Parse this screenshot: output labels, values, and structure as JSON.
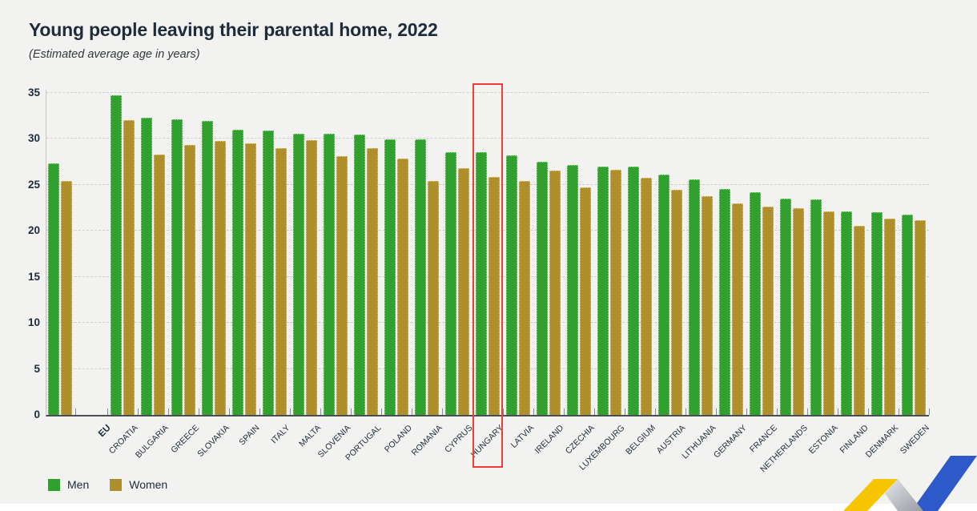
{
  "title": "Young people leaving their parental home, 2022",
  "subtitle": "(Estimated average age in years)",
  "legend": {
    "men": "Men",
    "women": "Women"
  },
  "colors": {
    "men": "#31a02f",
    "women": "#af8e2c",
    "highlight_box": "#ee3d36",
    "background": "#f2f2f0",
    "ink": "#1d2b3a",
    "logo_yellow": "#f6c500",
    "logo_blue": "#2d5ac8",
    "logo_gray": "#b9bcc2"
  },
  "chart_data": {
    "type": "bar",
    "title": "Young people leaving their parental home, 2022",
    "subtitle": "(Estimated average age in years)",
    "ylabel": "Estimated average age in years",
    "ylim": [
      0,
      35
    ],
    "yticks": [
      0,
      5,
      10,
      15,
      20,
      25,
      30,
      35
    ],
    "grid": "horizontal-dashed",
    "legend_position": "bottom-left",
    "highlighted_category": "HUNGARY",
    "categories": [
      "EU",
      "CROATIA",
      "BULGARIA",
      "GREECE",
      "SLOVAKIA",
      "SPAIN",
      "ITALY",
      "MALTA",
      "SLOVENIA",
      "PORTUGAL",
      "POLAND",
      "ROMANIA",
      "CYPRUS",
      "HUNGARY",
      "LATVIA",
      "IRELAND",
      "CZECHIA",
      "LUXEMBOURG",
      "BELGIUM",
      "AUSTRIA",
      "LITHUANIA",
      "GERMANY",
      "FRANCE",
      "NETHERLANDS",
      "ESTONIA",
      "FINLAND",
      "DENMARK",
      "SWEDEN"
    ],
    "series": [
      {
        "name": "Men",
        "color": "#31a02f",
        "values": [
          27.3,
          34.7,
          32.3,
          32.1,
          31.9,
          31.0,
          30.9,
          30.5,
          30.5,
          30.4,
          29.9,
          29.9,
          28.5,
          28.5,
          28.2,
          27.5,
          27.1,
          27.0,
          27.0,
          26.1,
          25.6,
          24.5,
          24.2,
          23.5,
          23.4,
          22.1,
          22.0,
          21.7
        ]
      },
      {
        "name": "Women",
        "color": "#af8e2c",
        "values": [
          25.4,
          32.0,
          28.3,
          29.3,
          29.7,
          29.5,
          29.0,
          29.8,
          28.1,
          29.0,
          27.8,
          25.4,
          26.8,
          25.8,
          25.4,
          26.5,
          24.7,
          26.6,
          25.7,
          24.4,
          23.7,
          23.0,
          22.6,
          22.4,
          22.1,
          20.5,
          21.3,
          21.1
        ]
      }
    ]
  }
}
